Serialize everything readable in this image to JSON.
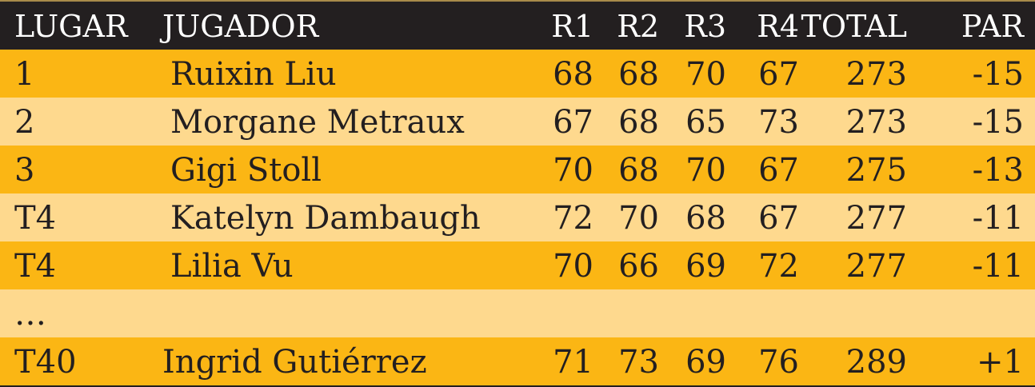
{
  "colors": {
    "header_bg": "#231f20",
    "row_dark": "#fbb614",
    "row_light": "#fed98e",
    "text": "#231f20"
  },
  "header": {
    "place": "LUGAR",
    "player": "JUGADOR",
    "r1": "R1",
    "r2": "R2",
    "r3": "R3",
    "r4": "R4",
    "total": "TOTAL",
    "par": "PAR"
  },
  "rows": [
    {
      "place": "1",
      "player": "Ruixin Liu",
      "r1": "68",
      "r2": "68",
      "r3": "70",
      "r4": "67",
      "total": "273",
      "par": "-15"
    },
    {
      "place": "2",
      "player": "Morgane Metraux",
      "r1": "67",
      "r2": "68",
      "r3": "65",
      "r4": "73",
      "total": "273",
      "par": "-15"
    },
    {
      "place": "3",
      "player": "Gigi Stoll",
      "r1": "70",
      "r2": "68",
      "r3": "70",
      "r4": "67",
      "total": "275",
      "par": "-13"
    },
    {
      "place": "T4",
      "player": "Katelyn Dambaugh",
      "r1": "72",
      "r2": "70",
      "r3": "68",
      "r4": "67",
      "total": "277",
      "par": "-11"
    },
    {
      "place": "T4",
      "player": "Lilia Vu",
      "r1": "70",
      "r2": "66",
      "r3": "69",
      "r4": "72",
      "total": "277",
      "par": "-11"
    },
    {
      "place": "…"
    },
    {
      "place": "T40",
      "player": "Ingrid Gutiérrez",
      "r1": "71",
      "r2": "73",
      "r3": "69",
      "r4": "76",
      "total": "289",
      "par": "+1"
    }
  ]
}
